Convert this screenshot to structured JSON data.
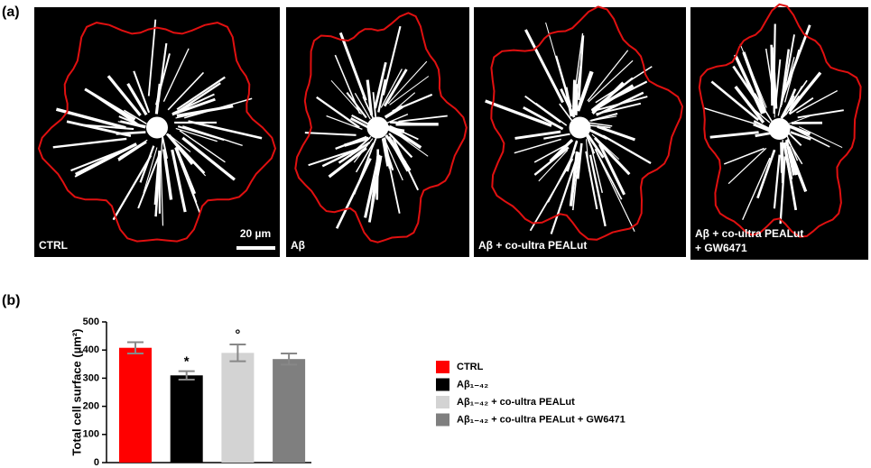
{
  "figure": {
    "panel_a_label": "(a)",
    "panel_b_label": "(b)",
    "scale_bar": "20 µm",
    "panels": [
      {
        "label_lines": [
          "CTRL"
        ]
      },
      {
        "label_lines": [
          "Aβ"
        ]
      },
      {
        "label_lines": [
          "Aβ + co-ultra PEALut"
        ]
      },
      {
        "label_lines": [
          "Aβ + co-ultra PEALut",
          "+ GW6471"
        ]
      }
    ]
  },
  "chart_data": {
    "type": "bar",
    "ylabel": "Total cell surface (µm²)",
    "ylim": [
      0,
      500
    ],
    "yticks": [
      0,
      100,
      200,
      300,
      400,
      500
    ],
    "series": [
      {
        "name": "CTRL",
        "color": "#ff0000",
        "values": [
          408
        ],
        "errors": [
          20
        ]
      },
      {
        "name": "Aβ₁₋₄₂",
        "color": "#000000",
        "values": [
          310
        ],
        "errors": [
          15
        ],
        "annotation": "*"
      },
      {
        "name": "Aβ₁₋₄₂ + co-ultra PEALut",
        "color": "#d3d3d3",
        "values": [
          390
        ],
        "errors": [
          30
        ],
        "annotation": "°"
      },
      {
        "name": "Aβ₁₋₄₂ + co-ultra PEALut + GW6471",
        "color": "#7f7f7f",
        "values": [
          368
        ],
        "errors": [
          20
        ]
      }
    ]
  }
}
